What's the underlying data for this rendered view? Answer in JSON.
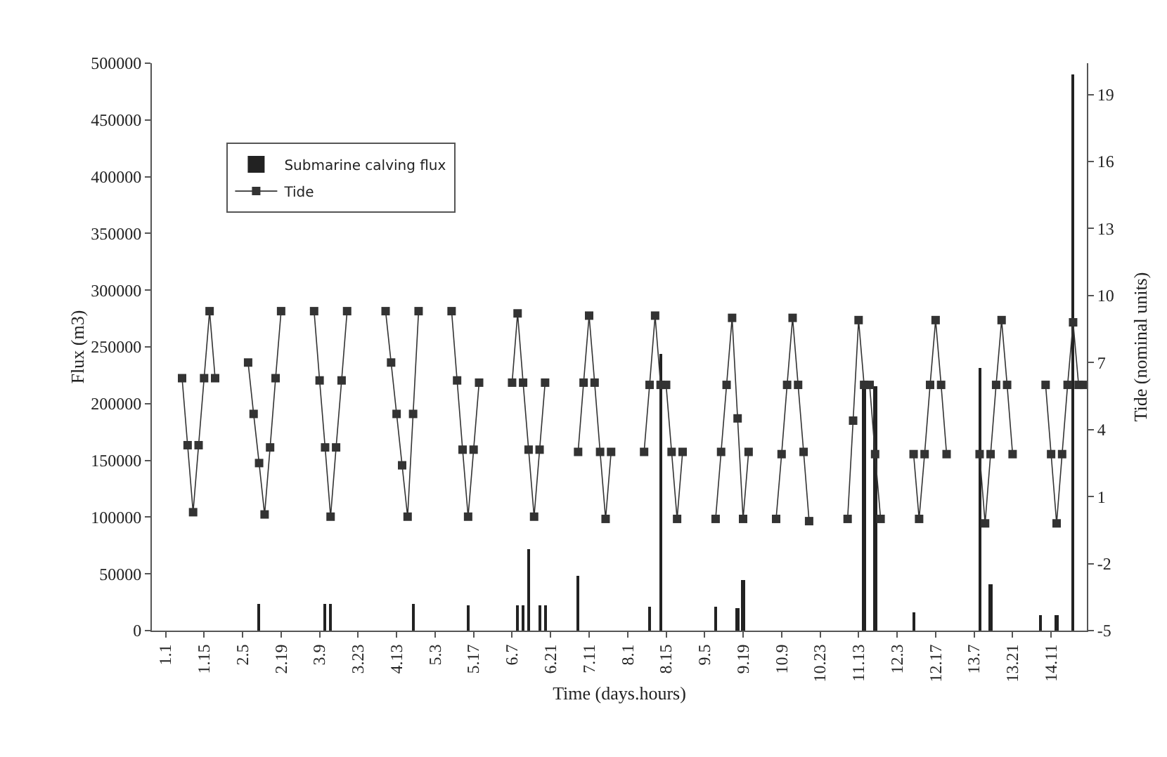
{
  "chart_data": {
    "type": "bar",
    "xlabel": "Time (days.hours)",
    "ylabel": "Flux (m3)",
    "y2label": "Tide (nominal units)",
    "categories": [
      null,
      null,
      "1.1",
      null,
      null,
      null,
      null,
      null,
      null,
      "1.15",
      null,
      null,
      null,
      null,
      null,
      null,
      "2.5",
      null,
      null,
      null,
      null,
      null,
      null,
      "2.19",
      null,
      null,
      null,
      null,
      null,
      null,
      "3.9",
      null,
      null,
      null,
      null,
      null,
      null,
      "3.23",
      null,
      null,
      null,
      null,
      null,
      null,
      "4.13",
      null,
      null,
      null,
      null,
      null,
      null,
      "5.3",
      null,
      null,
      null,
      null,
      null,
      null,
      "5.17",
      null,
      null,
      null,
      null,
      null,
      null,
      "6.7",
      null,
      null,
      null,
      null,
      null,
      null,
      "6.21",
      null,
      null,
      null,
      null,
      null,
      null,
      "7.11",
      null,
      null,
      null,
      null,
      null,
      null,
      "8.1",
      null,
      null,
      null,
      null,
      null,
      null,
      "8.15",
      null,
      null,
      null,
      null,
      null,
      null,
      "9.5",
      null,
      null,
      null,
      null,
      null,
      null,
      "9.19",
      null,
      null,
      null,
      null,
      null,
      null,
      "10.9",
      null,
      null,
      null,
      null,
      null,
      null,
      "10.23",
      null,
      null,
      null,
      null,
      null,
      null,
      "11.13",
      null,
      null,
      null,
      null,
      null,
      null,
      "12.3",
      null,
      null,
      null,
      null,
      null,
      null,
      "12.17",
      null,
      null,
      null,
      null,
      null,
      null,
      "13.7",
      null,
      null,
      null,
      null,
      null,
      null,
      "13.21",
      null,
      null,
      null,
      null,
      null,
      null,
      "14.11",
      null,
      null,
      null,
      null,
      null,
      null
    ],
    "ylim": [
      0,
      500000
    ],
    "yticks": [
      0,
      50000,
      100000,
      150000,
      200000,
      250000,
      300000,
      350000,
      400000,
      450000,
      500000
    ],
    "y2lim": [
      -5,
      20.4
    ],
    "y2ticks": [
      -5,
      -2,
      1,
      4,
      7,
      10,
      13,
      16,
      19
    ],
    "grid": false,
    "legend": "top left",
    "marker": "square",
    "line_style": "solid",
    "series": [
      {
        "name": "Submarine calving flux",
        "color": "#222222",
        "values": [
          null,
          null,
          null,
          null,
          null,
          null,
          null,
          null,
          null,
          null,
          null,
          null,
          null,
          null,
          null,
          null,
          null,
          null,
          null,
          23000,
          null,
          null,
          null,
          null,
          null,
          null,
          null,
          null,
          null,
          null,
          null,
          23000,
          23000,
          null,
          null,
          null,
          null,
          null,
          null,
          null,
          null,
          null,
          null,
          null,
          null,
          null,
          null,
          23000,
          null,
          null,
          null,
          null,
          null,
          null,
          null,
          null,
          null,
          22000,
          null,
          null,
          null,
          null,
          null,
          null,
          null,
          null,
          22000,
          22000,
          72000,
          null,
          22000,
          22000,
          null,
          null,
          null,
          null,
          null,
          48000,
          null,
          null,
          null,
          null,
          null,
          null,
          null,
          null,
          null,
          null,
          null,
          null,
          21000,
          null,
          244000,
          null,
          null,
          null,
          null,
          null,
          null,
          null,
          null,
          null,
          21000,
          null,
          null,
          null,
          20000,
          45000,
          null,
          null,
          null,
          null,
          null,
          null,
          null,
          null,
          null,
          null,
          null,
          null,
          null,
          null,
          null,
          null,
          null,
          null,
          null,
          null,
          null,
          220000,
          null,
          215000,
          null,
          null,
          null,
          null,
          null,
          null,
          16000,
          null,
          null,
          null,
          null,
          null,
          null,
          null,
          null,
          null,
          null,
          null,
          232000,
          null,
          41000,
          null,
          null,
          null,
          null,
          null,
          null,
          null,
          null,
          14000,
          null,
          null,
          14000,
          null,
          null,
          490000,
          null,
          null
        ]
      },
      {
        "name": "Tide",
        "type": "line",
        "axis": "y2",
        "color": "#333333",
        "values": [
          null,
          null,
          null,
          null,
          null,
          6.3,
          3.3,
          0.3,
          3.3,
          6.3,
          9.3,
          6.3,
          null,
          null,
          null,
          null,
          null,
          7.0,
          4.7,
          2.5,
          0.2,
          3.2,
          6.3,
          9.3,
          null,
          null,
          null,
          null,
          null,
          9.3,
          6.2,
          3.2,
          0.1,
          3.2,
          6.2,
          9.3,
          null,
          null,
          null,
          null,
          null,
          null,
          9.3,
          7.0,
          4.7,
          2.4,
          0.1,
          4.7,
          9.3,
          null,
          null,
          null,
          null,
          null,
          9.3,
          6.2,
          3.1,
          0.1,
          3.1,
          6.1,
          null,
          null,
          null,
          null,
          null,
          6.1,
          9.2,
          6.1,
          3.1,
          0.1,
          3.1,
          6.1,
          null,
          null,
          null,
          null,
          null,
          3.0,
          6.1,
          9.1,
          6.1,
          3.0,
          0.0,
          3.0,
          null,
          null,
          null,
          null,
          null,
          3.0,
          6.0,
          9.1,
          6.0,
          6.0,
          3.0,
          0.0,
          3.0,
          null,
          null,
          null,
          null,
          null,
          0.0,
          3.0,
          6.0,
          9.0,
          4.5,
          0.0,
          3.0,
          null,
          null,
          null,
          null,
          0.0,
          2.9,
          6.0,
          9.0,
          6.0,
          3.0,
          -0.1,
          null,
          null,
          null,
          null,
          null,
          null,
          0.0,
          4.4,
          8.9,
          6.0,
          6.0,
          2.9,
          0.0,
          null,
          null,
          null,
          null,
          null,
          2.9,
          0.0,
          2.9,
          6.0,
          8.9,
          6.0,
          2.9,
          null,
          null,
          null,
          null,
          null,
          2.9,
          -0.2,
          2.9,
          6.0,
          8.9,
          6.0,
          2.9,
          null,
          null,
          null,
          null,
          null,
          6.0,
          2.9,
          -0.2,
          2.9,
          6.0,
          8.8,
          6.0,
          6.0
        ]
      }
    ]
  }
}
